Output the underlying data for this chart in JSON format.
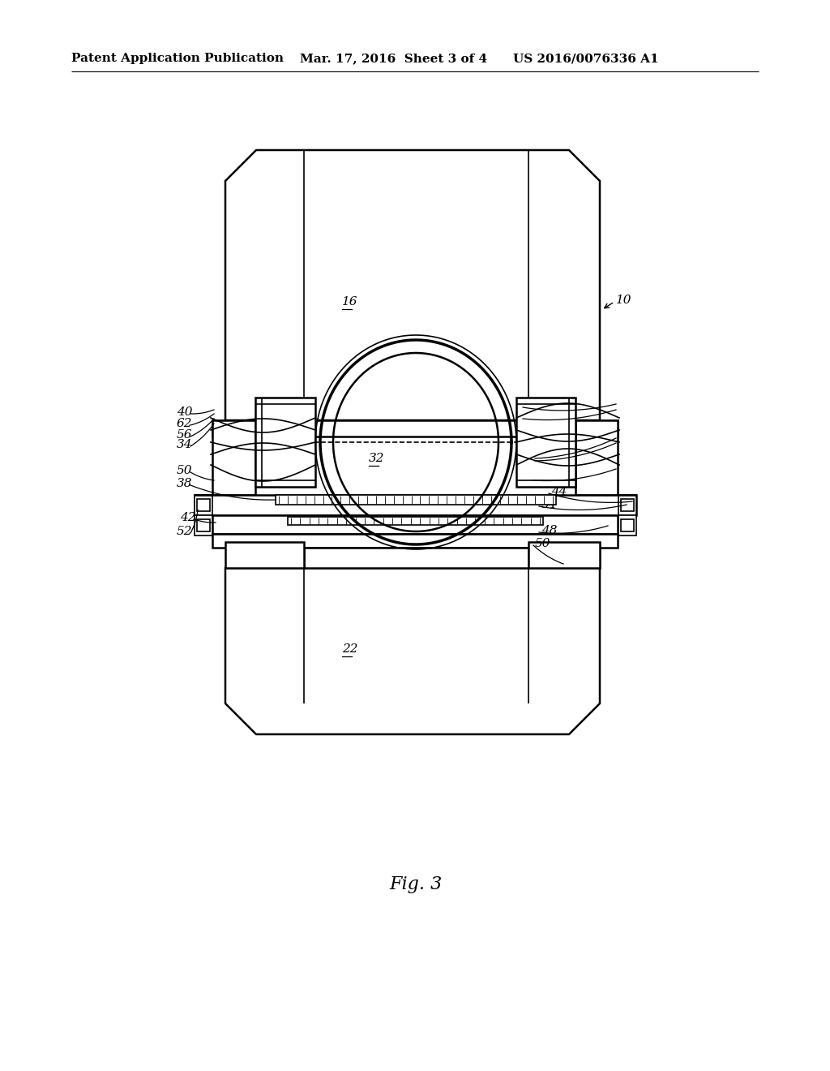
{
  "bg_color": "#ffffff",
  "line_color": "#000000",
  "header_left": "Patent Application Publication",
  "header_center": "Mar. 17, 2016  Sheet 3 of 4",
  "header_right": "US 2016/0076336 A1",
  "fig_label": "Fig. 3",
  "underlined_labels": [
    "16",
    "22",
    "32"
  ]
}
